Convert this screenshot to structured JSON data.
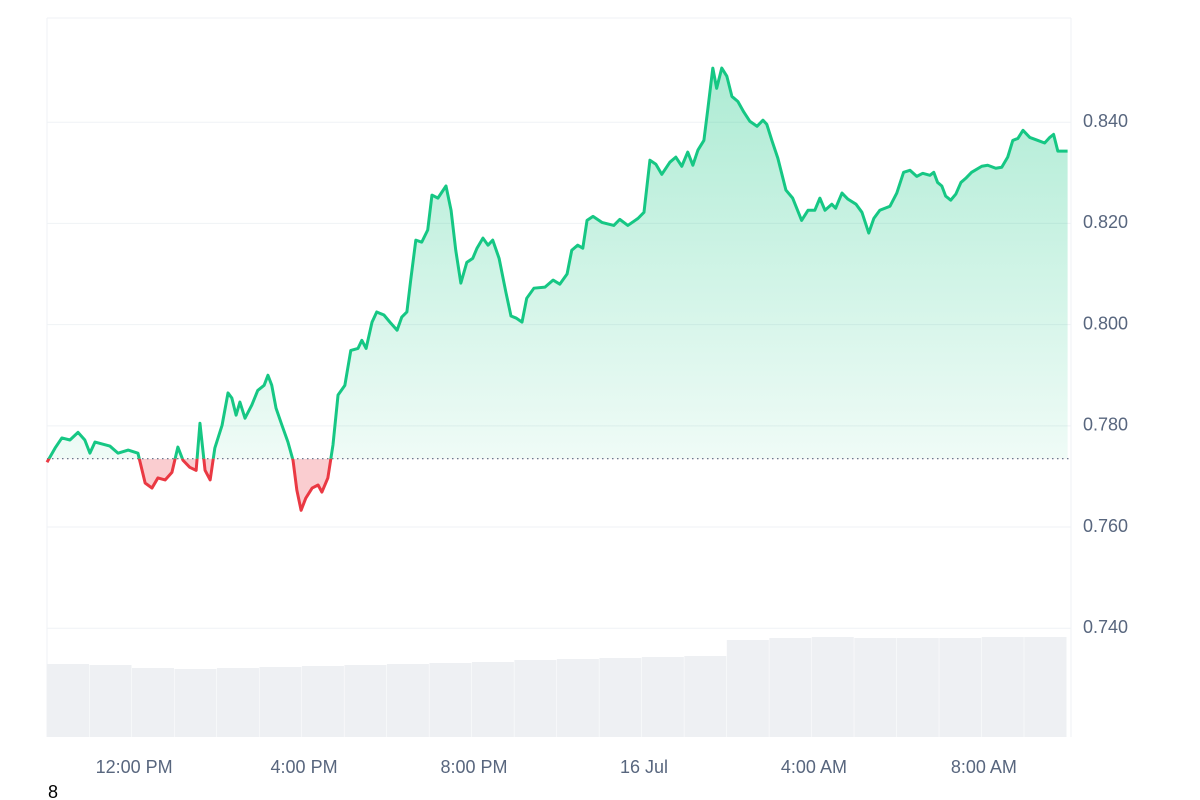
{
  "chart_data": {
    "type": "line",
    "x": [
      9.95,
      10.14,
      10.3,
      10.49,
      10.68,
      10.84,
      10.96,
      11.08,
      11.43,
      11.62,
      11.86,
      12.09,
      12.26,
      12.42,
      12.56,
      12.73,
      12.89,
      13.03,
      13.15,
      13.31,
      13.46,
      13.55,
      13.67,
      13.79,
      13.9,
      14.07,
      14.21,
      14.3,
      14.4,
      14.49,
      14.61,
      14.77,
      14.91,
      15.06,
      15.15,
      15.24,
      15.34,
      15.48,
      15.62,
      15.74,
      15.83,
      15.93,
      16.04,
      16.19,
      16.33,
      16.42,
      16.56,
      16.68,
      16.8,
      16.96,
      17.1,
      17.27,
      17.36,
      17.46,
      17.6,
      17.71,
      17.88,
      18.02,
      18.19,
      18.3,
      18.42,
      18.51,
      18.63,
      18.77,
      18.91,
      19.01,
      19.15,
      19.34,
      19.46,
      19.57,
      19.69,
      19.83,
      19.97,
      20.07,
      20.21,
      20.33,
      20.44,
      20.59,
      20.75,
      20.87,
      20.99,
      21.13,
      21.24,
      21.41,
      21.67,
      21.86,
      22.02,
      22.19,
      22.3,
      22.44,
      22.56,
      22.66,
      22.8,
      23.01,
      23.29,
      23.43,
      23.62,
      23.86,
      24.0,
      24.14,
      24.28,
      24.42,
      24.61,
      24.75,
      24.89,
      25.03,
      25.15,
      25.27,
      25.41,
      25.5,
      25.62,
      25.71,
      25.83,
      25.95,
      26.07,
      26.21,
      26.35,
      26.49,
      26.66,
      26.8,
      26.89,
      27.01,
      27.15,
      27.34,
      27.5,
      27.71,
      27.86,
      28.02,
      28.14,
      28.26,
      28.42,
      28.51,
      28.66,
      28.8,
      28.99,
      29.13,
      29.29,
      29.41,
      29.55,
      29.79,
      29.95,
      30.11,
      30.26,
      30.42,
      30.56,
      30.73,
      30.82,
      30.91,
      31.01,
      31.1,
      31.22,
      31.34,
      31.46,
      31.57,
      31.71,
      31.95,
      32.09,
      32.28,
      32.42,
      32.56,
      32.68,
      32.8,
      32.92,
      33.08,
      33.27,
      33.43,
      33.55,
      33.64,
      33.74,
      33.97
    ],
    "values": [
      0.7728,
      0.7756,
      0.7776,
      0.7772,
      0.7787,
      0.7772,
      0.7746,
      0.7768,
      0.776,
      0.7746,
      0.7752,
      0.7746,
      0.7687,
      0.7677,
      0.7697,
      0.7693,
      0.7708,
      0.7758,
      0.7732,
      0.7718,
      0.7712,
      0.7805,
      0.7712,
      0.7693,
      0.7756,
      0.7801,
      0.7865,
      0.7855,
      0.7821,
      0.7847,
      0.7815,
      0.7841,
      0.787,
      0.788,
      0.79,
      0.788,
      0.7835,
      0.7801,
      0.7768,
      0.7732,
      0.7673,
      0.7633,
      0.7657,
      0.7677,
      0.7683,
      0.7669,
      0.7697,
      0.7762,
      0.7861,
      0.788,
      0.7949,
      0.7953,
      0.7969,
      0.7953,
      0.8005,
      0.8025,
      0.8019,
      0.8005,
      0.7989,
      0.8015,
      0.8025,
      0.8088,
      0.8167,
      0.8163,
      0.8187,
      0.8256,
      0.825,
      0.8274,
      0.8226,
      0.8147,
      0.8082,
      0.8123,
      0.8131,
      0.8151,
      0.8171,
      0.8157,
      0.8167,
      0.8131,
      0.8064,
      0.8017,
      0.8013,
      0.8005,
      0.8052,
      0.8072,
      0.8074,
      0.8088,
      0.808,
      0.81,
      0.8147,
      0.8157,
      0.8151,
      0.8206,
      0.8214,
      0.8202,
      0.8196,
      0.8208,
      0.8196,
      0.821,
      0.8222,
      0.8325,
      0.8317,
      0.8297,
      0.8321,
      0.8331,
      0.8313,
      0.8341,
      0.8315,
      0.8345,
      0.8364,
      0.8424,
      0.8507,
      0.8467,
      0.8507,
      0.8491,
      0.8451,
      0.8441,
      0.842,
      0.8402,
      0.8392,
      0.8404,
      0.8396,
      0.8364,
      0.8329,
      0.8266,
      0.825,
      0.8206,
      0.8226,
      0.8226,
      0.825,
      0.8226,
      0.8238,
      0.823,
      0.826,
      0.8248,
      0.8238,
      0.8222,
      0.8181,
      0.821,
      0.8226,
      0.8234,
      0.826,
      0.8301,
      0.8305,
      0.8293,
      0.8299,
      0.8295,
      0.8301,
      0.8281,
      0.8274,
      0.8254,
      0.8246,
      0.8258,
      0.8281,
      0.8289,
      0.8301,
      0.8313,
      0.8315,
      0.8309,
      0.8311,
      0.8331,
      0.8364,
      0.8368,
      0.8384,
      0.837,
      0.8364,
      0.8359,
      0.837,
      0.8376,
      0.8343,
      0.8343
    ],
    "baseline": 0.7735,
    "color": "#16c784",
    "below_color": "#ea3943",
    "xlim": [
      9.95,
      34.05
    ],
    "xticks": [
      {
        "value": 12,
        "label": "12:00 PM"
      },
      {
        "value": 16,
        "label": "4:00 PM"
      },
      {
        "value": 20,
        "label": "8:00 PM"
      },
      {
        "value": 24,
        "label": "16 Jul"
      },
      {
        "value": 28,
        "label": "4:00 AM"
      },
      {
        "value": 32,
        "label": "8:00 AM"
      }
    ],
    "ylim": [
      0.7185,
      0.8606
    ],
    "yticks": [
      {
        "value": 0.74,
        "label": "0.740"
      },
      {
        "value": 0.76,
        "label": "0.760"
      },
      {
        "value": 0.78,
        "label": "0.780"
      },
      {
        "value": 0.8,
        "label": "0.800"
      },
      {
        "value": 0.82,
        "label": "0.820"
      },
      {
        "value": 0.84,
        "label": "0.840"
      }
    ],
    "grid": true,
    "volume": {
      "color": "#eef0f3",
      "ylim": [
        0,
        107
      ],
      "x": [
        9.95,
        10.95,
        11.95,
        12.95,
        13.95,
        14.95,
        15.95,
        16.95,
        17.95,
        18.95,
        19.95,
        20.95,
        21.95,
        22.95,
        23.95,
        24.95,
        25.95,
        26.95,
        27.95,
        28.95,
        29.95,
        30.95,
        31.95,
        32.95
      ],
      "values": [
        73,
        72,
        69,
        68,
        69,
        70,
        71,
        72,
        73,
        74,
        75,
        77,
        78,
        79,
        80,
        81,
        97,
        99,
        100,
        99,
        99,
        99,
        100,
        100
      ]
    },
    "footer_text": "8"
  }
}
